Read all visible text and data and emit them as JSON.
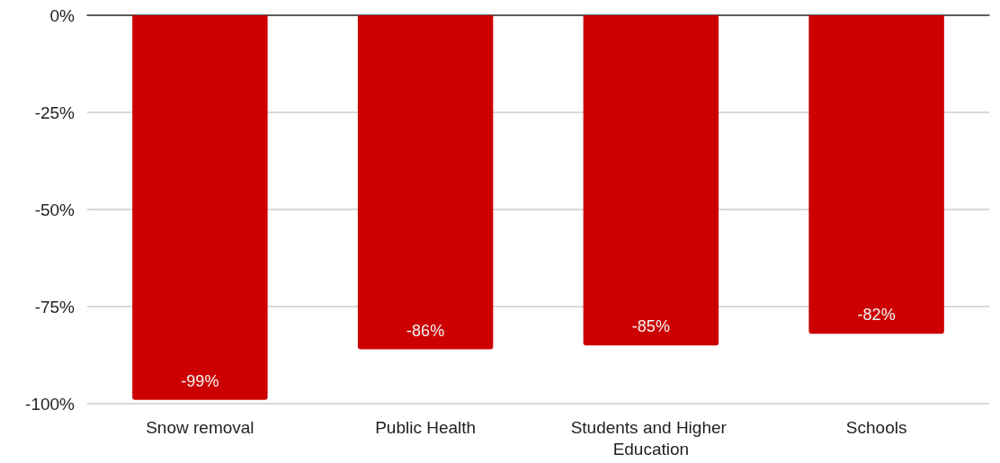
{
  "chart_data": {
    "type": "bar",
    "categories": [
      "Snow removal",
      "Public Health",
      "Students and Higher Education",
      "Schools"
    ],
    "values": [
      -99,
      -86,
      -85,
      -82
    ],
    "value_labels": [
      "-99%",
      "-86%",
      "-85%",
      "-82%"
    ],
    "color": "#cc0000",
    "ylim": [
      -100,
      0
    ],
    "yticks": [
      {
        "value": 0,
        "label": "0%"
      },
      {
        "value": -25,
        "label": "-25%"
      },
      {
        "value": -50,
        "label": "-50%"
      },
      {
        "value": -75,
        "label": "-75%"
      },
      {
        "value": -100,
        "label": "-100%"
      }
    ],
    "grid": "y"
  }
}
